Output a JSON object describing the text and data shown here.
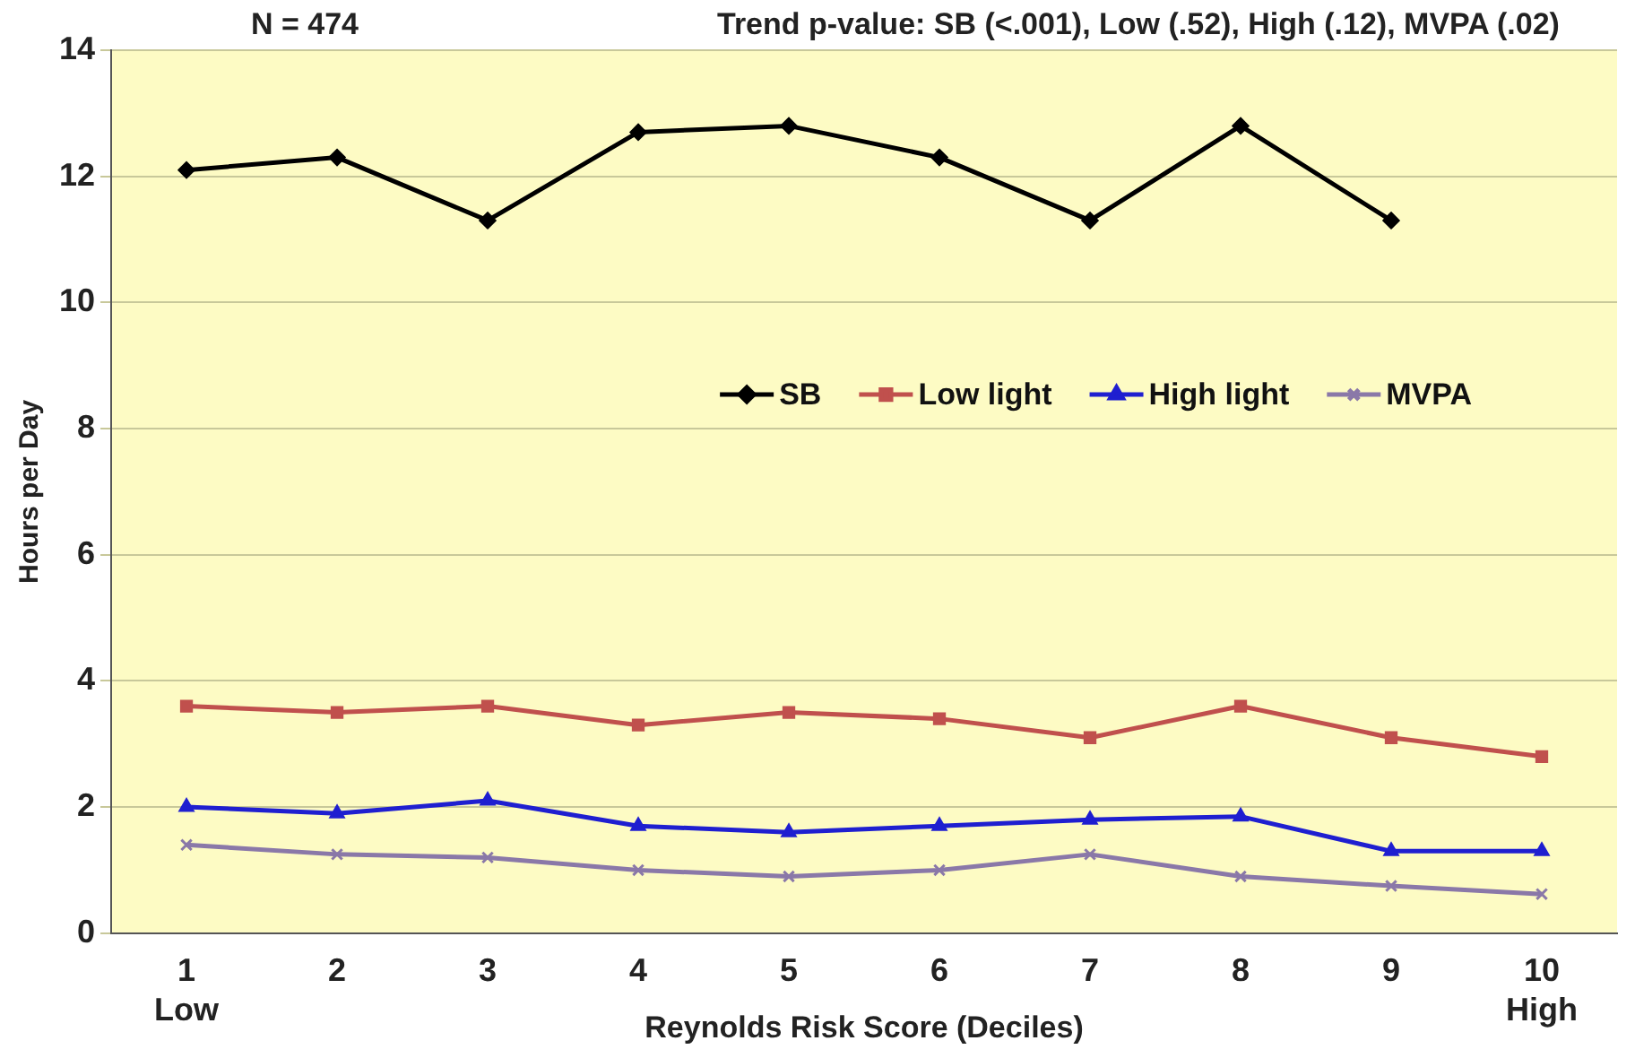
{
  "chart_data": {
    "type": "line",
    "xlabel": "Reynolds Risk Score (Deciles)",
    "ylabel": "Hours per Day",
    "annotations": [
      "N = 474",
      "Trend p-value: SB (<.001), Low (.52), High (.12), MVPA (.02)"
    ],
    "categories": [
      "1\nLow",
      "2",
      "3",
      "4",
      "5",
      "6",
      "7",
      "8",
      "9",
      "10\nHigh"
    ],
    "series": [
      {
        "name": "SB",
        "color": "#000000",
        "marker": "diamond",
        "values": [
          12.1,
          12.3,
          11.3,
          12.7,
          12.8,
          12.3,
          11.3,
          12.8,
          11.3,
          null
        ]
      },
      {
        "name": "Low light",
        "color": "#c0504d",
        "marker": "square",
        "values": [
          3.6,
          3.5,
          3.6,
          3.3,
          3.5,
          3.4,
          3.1,
          3.6,
          3.1,
          2.8
        ]
      },
      {
        "name": "High light",
        "color": "#1f1fd0",
        "marker": "triangle",
        "values": [
          2.0,
          1.9,
          2.1,
          1.7,
          1.6,
          1.7,
          1.8,
          1.85,
          1.3,
          1.3
        ]
      },
      {
        "name": "MVPA",
        "color": "#8a78a8",
        "marker": "cross",
        "values": [
          1.4,
          1.25,
          1.2,
          1.0,
          0.9,
          1.0,
          1.25,
          0.9,
          0.75,
          0.62
        ]
      }
    ],
    "ylim": [
      0,
      14
    ],
    "yticks": [
      0,
      2,
      4,
      6,
      8,
      10,
      12,
      14
    ],
    "grid": "y",
    "legend": "top right",
    "line_style": "solid"
  }
}
